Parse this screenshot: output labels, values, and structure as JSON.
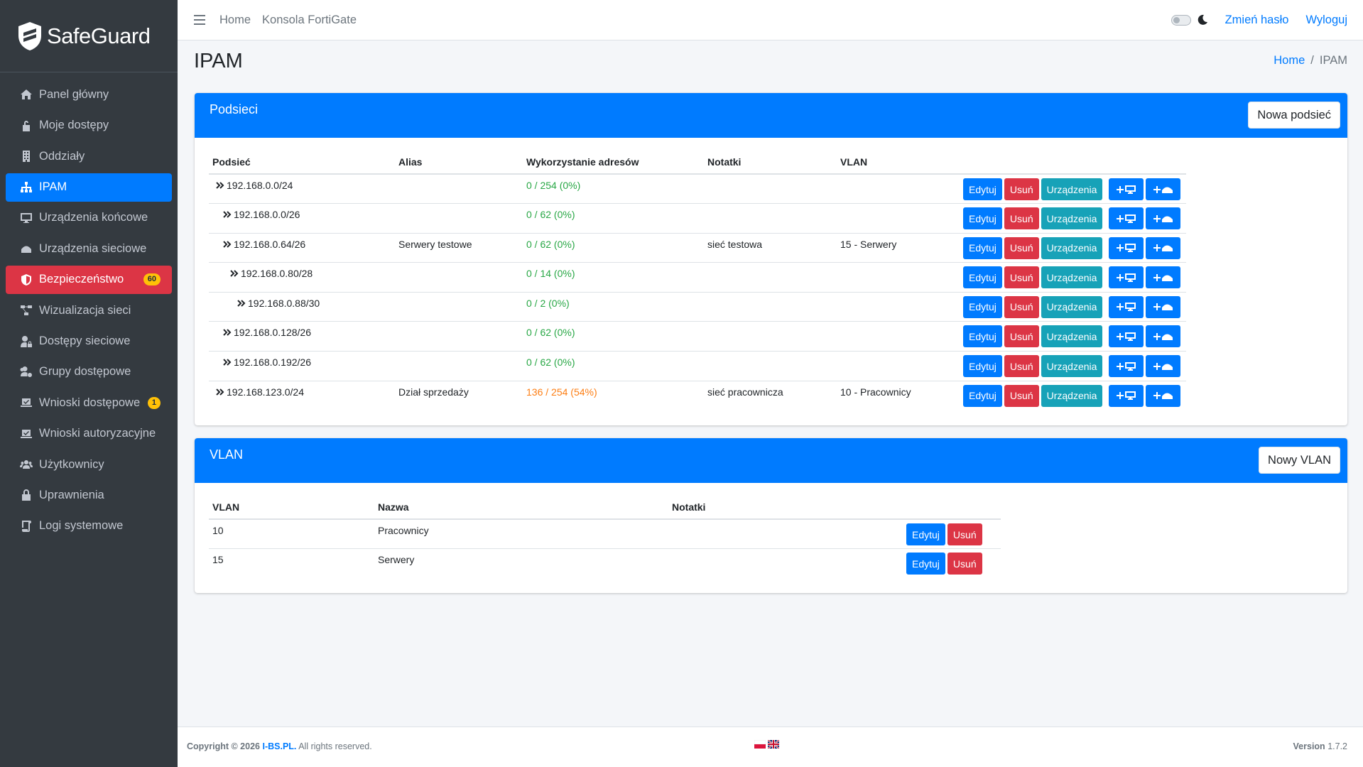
{
  "brand": {
    "name": "SafeGuard"
  },
  "sidebar": {
    "items": [
      {
        "label": "Panel główny",
        "icon": "home-icon"
      },
      {
        "label": "Moje dostępy",
        "icon": "unlock-icon"
      },
      {
        "label": "Oddziały",
        "icon": "building-icon"
      },
      {
        "label": "IPAM",
        "icon": "sitemap-icon",
        "active": true
      },
      {
        "label": "Urządzenia końcowe",
        "icon": "desktop-icon"
      },
      {
        "label": "Urządzenia sieciowe",
        "icon": "network-device-icon"
      },
      {
        "label": "Bezpieczeństwo",
        "icon": "shield-icon",
        "badge": "60"
      },
      {
        "label": "Wizualizacja sieci",
        "icon": "project-diagram-icon"
      },
      {
        "label": "Dostępy sieciowe",
        "icon": "user-lock-icon"
      },
      {
        "label": "Grupy dostępowe",
        "icon": "users-cog-icon"
      },
      {
        "label": "Wnioski dostępowe",
        "icon": "laptop-check-icon",
        "badge": "1"
      },
      {
        "label": "Wnioski autoryzacyjne",
        "icon": "laptop-check-icon"
      },
      {
        "label": "Użytkownicy",
        "icon": "users-icon"
      },
      {
        "label": "Uprawnienia",
        "icon": "lock-icon"
      },
      {
        "label": "Logi systemowe",
        "icon": "scroll-icon"
      }
    ]
  },
  "topbar": {
    "links": [
      "Home",
      "Konsola FortiGate"
    ],
    "change_password": "Zmień hasło",
    "logout": "Wyloguj"
  },
  "page": {
    "title": "IPAM",
    "breadcrumb_home": "Home",
    "breadcrumb_current": "IPAM"
  },
  "subnets": {
    "title": "Podsieci",
    "new_button": "Nowa podsieć",
    "columns": [
      "Podsieć",
      "Alias",
      "Wykorzystanie adresów",
      "Notatki",
      "VLAN"
    ],
    "rows": [
      {
        "subnet": "192.168.0.0/24",
        "alias": "",
        "usage": "0 / 254 (0%)",
        "notes": "",
        "vlan": "",
        "level": 0,
        "status": "green"
      },
      {
        "subnet": "192.168.0.0/26",
        "alias": "",
        "usage": "0 / 62 (0%)",
        "notes": "",
        "vlan": "",
        "level": 1,
        "status": "green"
      },
      {
        "subnet": "192.168.0.64/26",
        "alias": "Serwery testowe",
        "usage": "0 / 62 (0%)",
        "notes": "sieć testowa",
        "vlan": "15 - Serwery",
        "level": 1,
        "status": "green"
      },
      {
        "subnet": "192.168.0.80/28",
        "alias": "",
        "usage": "0 / 14 (0%)",
        "notes": "",
        "vlan": "",
        "level": 2,
        "status": "green"
      },
      {
        "subnet": "192.168.0.88/30",
        "alias": "",
        "usage": "0 / 2 (0%)",
        "notes": "",
        "vlan": "",
        "level": 3,
        "status": "green"
      },
      {
        "subnet": "192.168.0.128/26",
        "alias": "",
        "usage": "0 / 62 (0%)",
        "notes": "",
        "vlan": "",
        "level": 1,
        "status": "green"
      },
      {
        "subnet": "192.168.0.192/26",
        "alias": "",
        "usage": "0 / 62 (0%)",
        "notes": "",
        "vlan": "",
        "level": 1,
        "status": "green"
      },
      {
        "subnet": "192.168.123.0/24",
        "alias": "Dział sprzedaży",
        "usage": "136 / 254 (54%)",
        "notes": "sieć pracownicza",
        "vlan": "10 - Pracownicy",
        "level": 0,
        "status": "orange"
      }
    ],
    "actions": {
      "edit": "Edytuj",
      "delete": "Usuń",
      "devices": "Urządzenia"
    }
  },
  "vlans": {
    "title": "VLAN",
    "new_button": "Nowy VLAN",
    "columns": [
      "VLAN",
      "Nazwa",
      "Notatki"
    ],
    "rows": [
      {
        "id": "10",
        "name": "Pracownicy",
        "notes": ""
      },
      {
        "id": "15",
        "name": "Serwery",
        "notes": ""
      }
    ],
    "actions": {
      "edit": "Edytuj",
      "delete": "Usuń"
    }
  },
  "footer": {
    "copyright_prefix": "Copyright © 2026",
    "company": "I-BS.PL.",
    "rights": "All rights reserved.",
    "version_label": "Version",
    "version": "1.7.2"
  },
  "colors": {
    "primary": "#007bff",
    "danger": "#dc3545",
    "info": "#17a2b8",
    "sidebar": "#343a40",
    "success": "#28a745",
    "warning": "#fd7e14"
  }
}
